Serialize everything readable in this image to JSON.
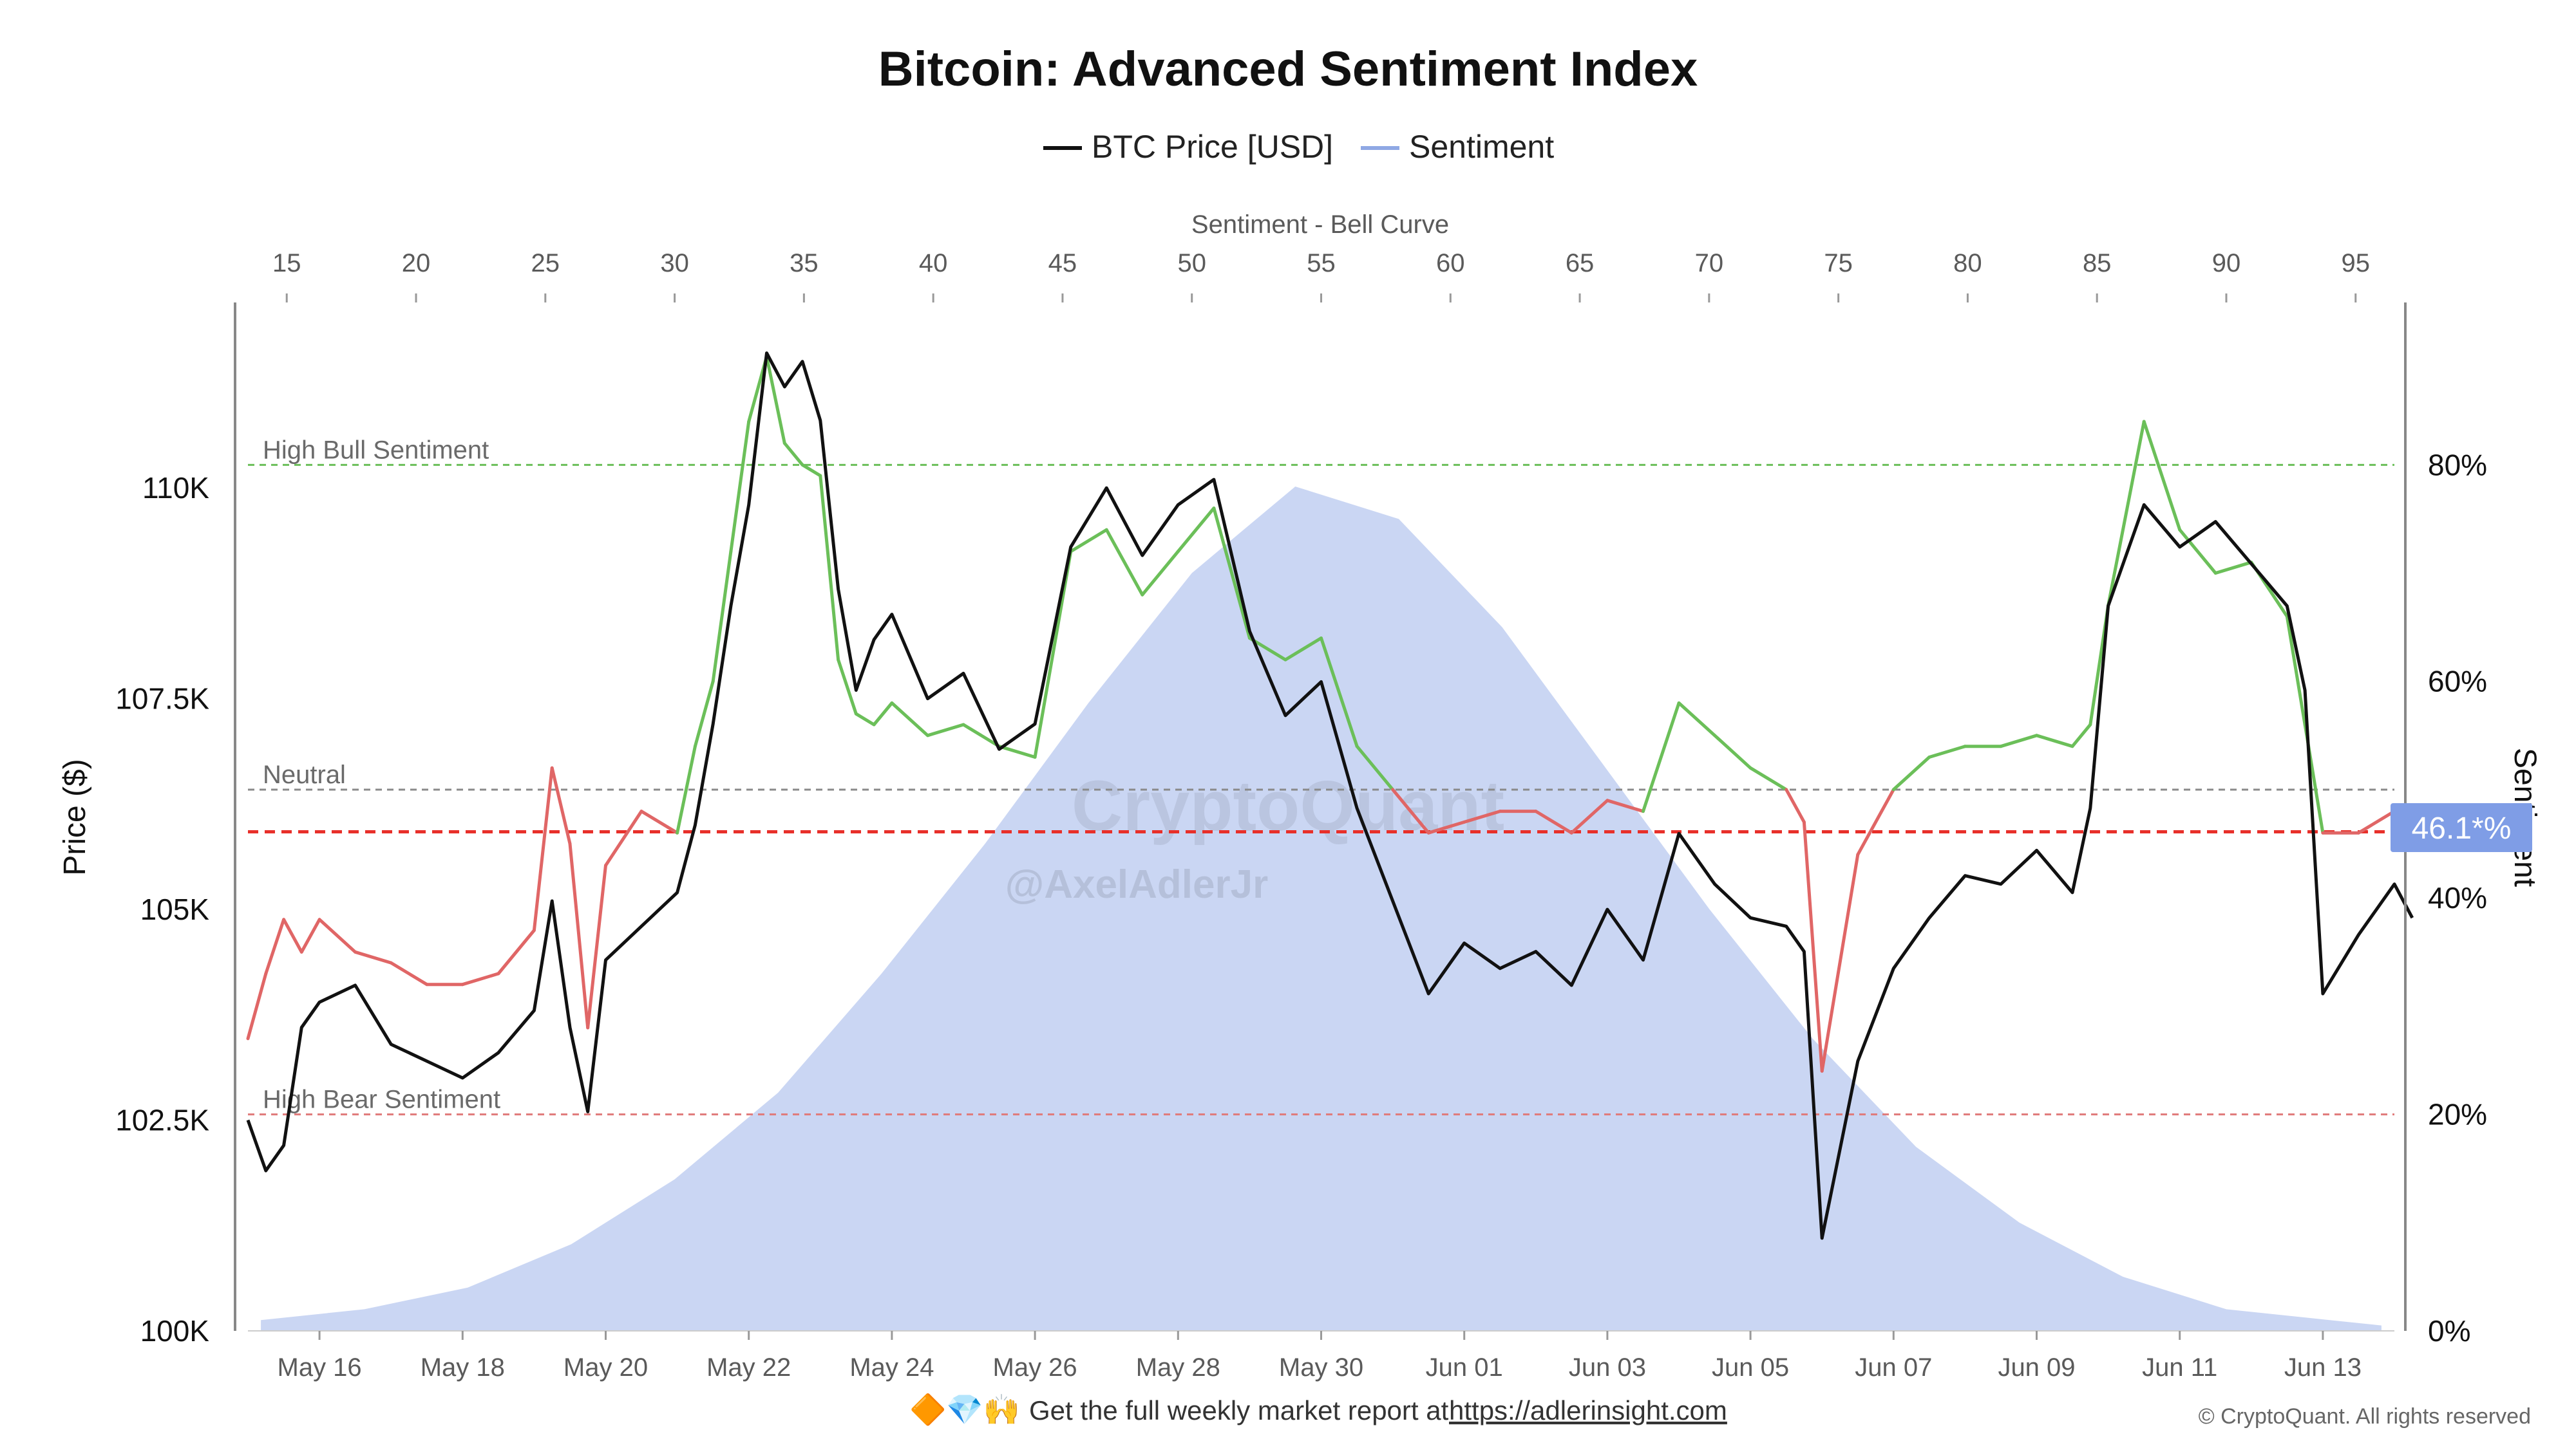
{
  "chart_data": {
    "type": "line",
    "title": "Bitcoin: Advanced Sentiment Index",
    "legend": {
      "placement": "top-center",
      "items": [
        {
          "label": "BTC Price [USD]",
          "color": "#111111"
        },
        {
          "label": "Sentiment",
          "color": "#8fa8e4"
        }
      ]
    },
    "axes": {
      "left": {
        "label": "Price ($)",
        "range": [
          100000,
          112200
        ],
        "ticks": [
          {
            "value": 100000,
            "label": "100K"
          },
          {
            "value": 102500,
            "label": "102.5K"
          },
          {
            "value": 105000,
            "label": "105K"
          },
          {
            "value": 107500,
            "label": "107.5K"
          },
          {
            "value": 110000,
            "label": "110K"
          }
        ]
      },
      "right": {
        "label": "Sentiment",
        "range": [
          0,
          95
        ],
        "ticks": [
          {
            "value": 0,
            "label": "0%"
          },
          {
            "value": 20,
            "label": "20%"
          },
          {
            "value": 40,
            "label": "40%"
          },
          {
            "value": 60,
            "label": "60%"
          },
          {
            "value": 80,
            "label": "80%"
          }
        ]
      },
      "bottom": {
        "range": [
          "2025-05-15",
          "2025-06-14"
        ],
        "ticks": [
          "May 16",
          "May 18",
          "May 20",
          "May 22",
          "May 24",
          "May 26",
          "May 28",
          "May 30",
          "Jun 01",
          "Jun 03",
          "Jun 05",
          "Jun 07",
          "Jun 09",
          "Jun 11",
          "Jun 13"
        ],
        "tick_dates": [
          "2025-05-16",
          "2025-05-18",
          "2025-05-20",
          "2025-05-22",
          "2025-05-24",
          "2025-05-26",
          "2025-05-28",
          "2025-05-30",
          "2025-06-01",
          "2025-06-03",
          "2025-06-05",
          "2025-06-07",
          "2025-06-09",
          "2025-06-11",
          "2025-06-13"
        ]
      },
      "top": {
        "label": "Sentiment - Bell Curve",
        "range": [
          13.5,
          96.5
        ],
        "ticks": [
          15,
          20,
          25,
          30,
          35,
          40,
          45,
          50,
          55,
          60,
          65,
          70,
          75,
          80,
          85,
          90,
          95
        ]
      }
    },
    "reference_lines": [
      {
        "label": "High Bull Sentiment",
        "value": 80,
        "color": "#6bbf59"
      },
      {
        "label": "Neutral",
        "value": 50,
        "color": "#8a8a8a"
      },
      {
        "label": "High Bear Sentiment",
        "value": 20,
        "color": "#e07a7a"
      }
    ],
    "current_line": {
      "value": 46.1,
      "label": "46.1*%",
      "color": "#e8302a",
      "badge_color": "#7f9de6"
    },
    "bell_curve": {
      "x": [
        14,
        18,
        22,
        26,
        30,
        34,
        38,
        42,
        46,
        50,
        54,
        58,
        62,
        66,
        70,
        74,
        78,
        82,
        86,
        90,
        94,
        96
      ],
      "sentiment": [
        1,
        2,
        4,
        8,
        14,
        22,
        33,
        45,
        58,
        70,
        78,
        75,
        65,
        52,
        39,
        27,
        17,
        10,
        5,
        2,
        1,
        0.5
      ]
    },
    "series": [
      {
        "name": "BTC Price [USD]",
        "x": [
          "2025-05-15 00:00",
          "2025-05-15 06:00",
          "2025-05-15 12:00",
          "2025-05-15 18:00",
          "2025-05-16 00:00",
          "2025-05-16 12:00",
          "2025-05-17 00:00",
          "2025-05-17 12:00",
          "2025-05-18 00:00",
          "2025-05-18 12:00",
          "2025-05-19 00:00",
          "2025-05-19 06:00",
          "2025-05-19 12:00",
          "2025-05-19 18:00",
          "2025-05-20 00:00",
          "2025-05-20 12:00",
          "2025-05-21 00:00",
          "2025-05-21 06:00",
          "2025-05-21 12:00",
          "2025-05-21 18:00",
          "2025-05-22 00:00",
          "2025-05-22 06:00",
          "2025-05-22 12:00",
          "2025-05-22 18:00",
          "2025-05-23 00:00",
          "2025-05-23 06:00",
          "2025-05-23 12:00",
          "2025-05-23 18:00",
          "2025-05-24 00:00",
          "2025-05-24 12:00",
          "2025-05-25 00:00",
          "2025-05-25 12:00",
          "2025-05-26 00:00",
          "2025-05-26 12:00",
          "2025-05-27 00:00",
          "2025-05-27 12:00",
          "2025-05-28 00:00",
          "2025-05-28 12:00",
          "2025-05-29 00:00",
          "2025-05-29 12:00",
          "2025-05-30 00:00",
          "2025-05-30 12:00",
          "2025-05-31 00:00",
          "2025-05-31 12:00",
          "2025-06-01 00:00",
          "2025-06-01 12:00",
          "2025-06-02 00:00",
          "2025-06-02 12:00",
          "2025-06-03 00:00",
          "2025-06-03 12:00",
          "2025-06-04 00:00",
          "2025-06-04 12:00",
          "2025-06-05 00:00",
          "2025-06-05 12:00",
          "2025-06-05 18:00",
          "2025-06-06 00:00",
          "2025-06-06 12:00",
          "2025-06-07 00:00",
          "2025-06-07 12:00",
          "2025-06-08 00:00",
          "2025-06-08 12:00",
          "2025-06-09 00:00",
          "2025-06-09 12:00",
          "2025-06-09 18:00",
          "2025-06-10 00:00",
          "2025-06-10 12:00",
          "2025-06-11 00:00",
          "2025-06-11 12:00",
          "2025-06-12 00:00",
          "2025-06-12 12:00",
          "2025-06-12 18:00",
          "2025-06-13 00:00",
          "2025-06-13 12:00",
          "2025-06-14 00:00",
          "2025-06-14 06:00"
        ],
        "values": [
          102500,
          101900,
          102200,
          103600,
          103900,
          104100,
          103400,
          103200,
          103000,
          103300,
          103800,
          105100,
          103600,
          102600,
          104400,
          104800,
          105200,
          106000,
          107200,
          108600,
          109800,
          111600,
          111200,
          111500,
          110800,
          108800,
          107600,
          108200,
          108500,
          107500,
          107800,
          106900,
          107200,
          109300,
          110000,
          109200,
          109800,
          110100,
          108300,
          107300,
          107700,
          106200,
          105100,
          104000,
          104600,
          104300,
          104500,
          104100,
          105000,
          104400,
          105900,
          105300,
          104900,
          104800,
          104500,
          101100,
          103200,
          104300,
          104900,
          105400,
          105300,
          105700,
          105200,
          106200,
          108600,
          109800,
          109300,
          109600,
          109100,
          108600,
          107600,
          104000,
          104700,
          105300,
          104900
        ]
      },
      {
        "name": "Sentiment",
        "x": [
          "2025-05-15 00:00",
          "2025-05-15 06:00",
          "2025-05-15 12:00",
          "2025-05-15 18:00",
          "2025-05-16 00:00",
          "2025-05-16 12:00",
          "2025-05-17 00:00",
          "2025-05-17 12:00",
          "2025-05-18 00:00",
          "2025-05-18 12:00",
          "2025-05-19 00:00",
          "2025-05-19 06:00",
          "2025-05-19 12:00",
          "2025-05-19 18:00",
          "2025-05-20 00:00",
          "2025-05-20 12:00",
          "2025-05-21 00:00",
          "2025-05-21 06:00",
          "2025-05-21 12:00",
          "2025-05-21 18:00",
          "2025-05-22 00:00",
          "2025-05-22 06:00",
          "2025-05-22 12:00",
          "2025-05-22 18:00",
          "2025-05-23 00:00",
          "2025-05-23 06:00",
          "2025-05-23 12:00",
          "2025-05-23 18:00",
          "2025-05-24 00:00",
          "2025-05-24 12:00",
          "2025-05-25 00:00",
          "2025-05-25 12:00",
          "2025-05-26 00:00",
          "2025-05-26 12:00",
          "2025-05-27 00:00",
          "2025-05-27 12:00",
          "2025-05-28 00:00",
          "2025-05-28 12:00",
          "2025-05-29 00:00",
          "2025-05-29 12:00",
          "2025-05-30 00:00",
          "2025-05-30 12:00",
          "2025-05-31 00:00",
          "2025-05-31 12:00",
          "2025-06-01 00:00",
          "2025-06-01 12:00",
          "2025-06-02 00:00",
          "2025-06-02 12:00",
          "2025-06-03 00:00",
          "2025-06-03 12:00",
          "2025-06-04 00:00",
          "2025-06-04 12:00",
          "2025-06-05 00:00",
          "2025-06-05 12:00",
          "2025-06-05 18:00",
          "2025-06-06 00:00",
          "2025-06-06 12:00",
          "2025-06-07 00:00",
          "2025-06-07 12:00",
          "2025-06-08 00:00",
          "2025-06-08 12:00",
          "2025-06-09 00:00",
          "2025-06-09 12:00",
          "2025-06-09 18:00",
          "2025-06-10 00:00",
          "2025-06-10 12:00",
          "2025-06-11 00:00",
          "2025-06-11 12:00",
          "2025-06-12 00:00",
          "2025-06-12 12:00",
          "2025-06-12 18:00",
          "2025-06-13 00:00",
          "2025-06-13 12:00",
          "2025-06-14 00:00",
          "2025-06-14 06:00"
        ],
        "values": [
          27,
          33,
          38,
          35,
          38,
          35,
          34,
          32,
          32,
          33,
          37,
          52,
          45,
          28,
          43,
          48,
          46,
          54,
          60,
          72,
          84,
          90,
          82,
          80,
          79,
          62,
          57,
          56,
          58,
          55,
          56,
          54,
          53,
          72,
          74,
          68,
          72,
          76,
          64,
          62,
          64,
          54,
          50,
          46,
          47,
          48,
          48,
          46,
          49,
          48,
          58,
          55,
          52,
          50,
          47,
          24,
          44,
          50,
          53,
          54,
          54,
          55,
          54,
          56,
          67,
          84,
          74,
          70,
          71,
          66,
          56,
          46,
          46,
          48,
          46.1
        ]
      }
    ]
  },
  "footer": {
    "emoji": "🔶💎🙌",
    "text": "Get the full weekly market report at",
    "link": "https://adlerinsight.com"
  },
  "copyright": "© CryptoQuant. All rights reserved",
  "watermark": {
    "name": "CryptoQuant",
    "handle": "@AxelAdlerJr"
  }
}
